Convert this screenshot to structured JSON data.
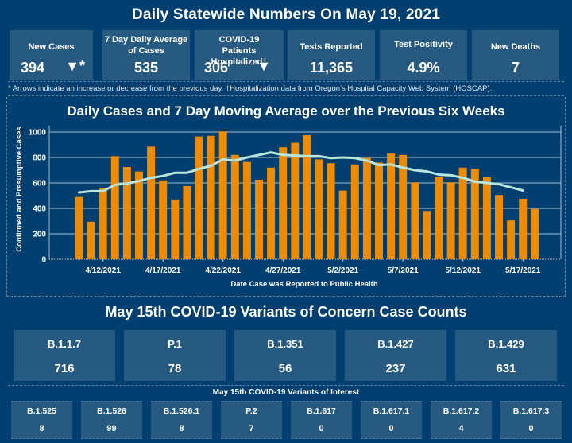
{
  "header": {
    "title": "Daily Statewide Numbers On May 19, 2021"
  },
  "kpis": [
    {
      "label": "New Cases",
      "value": "394",
      "trend": "down",
      "trend_glyph": "▼*"
    },
    {
      "label": "7 Day Daily Average of Cases",
      "value": "535"
    },
    {
      "label": "COVID-19 Patients Hospitalized†",
      "value": "306",
      "trend": "down",
      "trend_glyph": "▼"
    },
    {
      "label": "Tests Reported",
      "value": "11,365"
    },
    {
      "label": "Test Positivity",
      "value": "4.9%"
    },
    {
      "label": "New Deaths",
      "value": "7"
    }
  ],
  "footnote": "* Arrows indicate an increase or decrease from the previous day. †Hospitalization data from Oregon’s Hospital Capacity Web System (HOSCAP).",
  "colors": {
    "background": "#003f6f",
    "card": "#275a80",
    "bar": "#ee8b00",
    "line": "#b9e6dc"
  },
  "chart_data": {
    "type": "bar",
    "title": "Daily Cases and 7 Day Moving Average over the Previous Six Weeks",
    "xlabel": "Date Case was Reported to Public Health",
    "ylabel": "Confirmed and Presumptive Cases",
    "ylim": [
      0,
      1050
    ],
    "yticks": [
      0,
      200,
      400,
      600,
      800,
      1000
    ],
    "grid": true,
    "x_start": "4/10/2021",
    "xtick_labels": [
      "4/12/2021",
      "4/17/2021",
      "4/22/2021",
      "4/27/2021",
      "5/2/2021",
      "5/7/2021",
      "5/12/2021",
      "5/17/2021"
    ],
    "xtick_index": [
      2,
      7,
      12,
      17,
      22,
      27,
      32,
      37
    ],
    "series": [
      {
        "name": "Daily Cases",
        "type": "bar",
        "values": [
          490,
          295,
          560,
          810,
          725,
          690,
          885,
          620,
          470,
          575,
          965,
          970,
          1005,
          820,
          765,
          625,
          720,
          880,
          915,
          975,
          785,
          755,
          540,
          745,
          795,
          760,
          830,
          820,
          605,
          380,
          650,
          605,
          720,
          710,
          645,
          505,
          305,
          475,
          395
        ]
      },
      {
        "name": "7 Day Moving Average",
        "type": "line",
        "values": [
          525,
          535,
          535,
          585,
          595,
          615,
          640,
          655,
          680,
          680,
          710,
          735,
          785,
          775,
          800,
          820,
          840,
          820,
          815,
          810,
          810,
          795,
          800,
          795,
          775,
          740,
          745,
          720,
          700,
          690,
          665,
          660,
          640,
          610,
          600,
          590,
          565,
          540,
          null
        ]
      }
    ]
  },
  "variants_of_concern": {
    "title": "May 15th  COVID-19 Variants of Concern Case Counts",
    "items": [
      {
        "name": "B.1.1.7",
        "count": "716"
      },
      {
        "name": "P.1",
        "count": "78"
      },
      {
        "name": "B.1.351",
        "count": "56"
      },
      {
        "name": "B.1.427",
        "count": "237"
      },
      {
        "name": "B.1.429",
        "count": "631"
      }
    ]
  },
  "variants_of_interest": {
    "title": "May 15th COVID-19 Variants of Interest",
    "items": [
      {
        "name": "B.1.525",
        "count": "8"
      },
      {
        "name": "B.1.526",
        "count": "99"
      },
      {
        "name": "B.1.526.1",
        "count": "8"
      },
      {
        "name": "P.2",
        "count": "7"
      },
      {
        "name": "B.1.617",
        "count": "0"
      },
      {
        "name": "B.1.617.1",
        "count": "0"
      },
      {
        "name": "B.1.617.2",
        "count": "4"
      },
      {
        "name": "B.1.617.3",
        "count": "0"
      }
    ]
  }
}
